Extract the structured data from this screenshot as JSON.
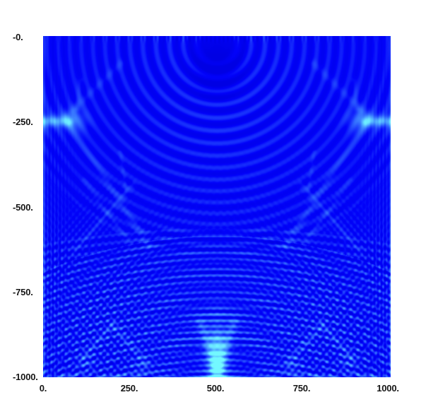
{
  "chart_data": {
    "type": "heatmap",
    "content": "2D seismic wavefield snapshot (blue colormap): circular source wavefronts at top center, boundary phases entering mid-left and mid-right edges, stacked flat reflection arcs filling the lower half, crossing diagonal multiples in the bottom corners, and a bright cyan focus plume at bottom center",
    "title": "",
    "xlabel": "",
    "ylabel": "",
    "x_range": [
      0,
      1000
    ],
    "y_range": [
      0,
      -1000
    ],
    "grid": false,
    "legend": "none",
    "x_ticks": [
      {
        "value": 0,
        "label": "0."
      },
      {
        "value": 250,
        "label": "250."
      },
      {
        "value": 500,
        "label": "500."
      },
      {
        "value": 750,
        "label": "750."
      },
      {
        "value": 1000,
        "label": "1000."
      }
    ],
    "y_ticks": [
      {
        "value": 0,
        "label": "-0."
      },
      {
        "value": 250,
        "label": "-250."
      },
      {
        "value": 500,
        "label": "-500."
      },
      {
        "value": 750,
        "label": "-750."
      },
      {
        "value": 1000,
        "label": "-1000."
      }
    ],
    "colors": {
      "page_background": "#ffffff",
      "field_base": "#0202fa",
      "ripple_light": "#2a62f2",
      "bright_cyan": "#45d2ff",
      "trough_dark": "#0000e0",
      "tick_text": "#151515"
    },
    "wavefield_features": [
      {
        "kind": "blob",
        "cx": 246,
        "cy": 36,
        "sx": 22,
        "sy": 30,
        "amp": -0.5
      },
      {
        "kind": "rings",
        "cx": 246,
        "cy": 10,
        "lam": 20,
        "lamSlope": -0.012,
        "r0": 34,
        "r1": 305,
        "rPhase": 48,
        "amp": 0.38,
        "taper": 0.3,
        "envEnd": 0.3
      },
      {
        "kind": "rings",
        "cx": 246,
        "cy": 900,
        "lam": 8,
        "r0": 418,
        "r1": 618,
        "rPhase": 418,
        "amp": 0.25,
        "envEnd": 0.85
      },
      {
        "kind": "rings",
        "cx": 246,
        "cy": 1600,
        "lam": 11,
        "r0": 1118,
        "r1": 1330,
        "rPhase": 1118,
        "amp": 0.19,
        "envEnd": 0.85
      },
      {
        "kind": "blob",
        "cx": 246,
        "cy": 420,
        "sx": 260,
        "sy": 95,
        "amp": 0.1
      },
      {
        "kind": "seg",
        "x1": 0,
        "y1": 120,
        "x2": 36,
        "y2": 120,
        "w": 5,
        "amp": 0.7,
        "sym": true
      },
      {
        "kind": "seg",
        "x1": 0,
        "y1": 120,
        "x2": 42,
        "y2": 120,
        "w": 13,
        "amp": 0.22,
        "sym": true
      },
      {
        "kind": "blob",
        "cx": 46,
        "cy": 118,
        "sx": 15,
        "sy": 12,
        "amp": 0.3,
        "sym": true
      },
      {
        "kind": "seg",
        "x1": 34,
        "y1": 112,
        "x2": 110,
        "y2": 38,
        "w": 4,
        "amp": 0.2,
        "sym": true
      },
      {
        "kind": "seg",
        "x1": 38,
        "y1": 124,
        "x2": 150,
        "y2": 298,
        "w": 4,
        "amp": 0.26,
        "sym": true
      },
      {
        "kind": "seg",
        "x1": 48,
        "y1": 102,
        "x2": 52,
        "y2": 62,
        "w": 3,
        "amp": 0.2,
        "sym": true
      },
      {
        "kind": "seg",
        "x1": 109,
        "y1": 164,
        "x2": 117,
        "y2": 219,
        "w": 2.5,
        "amp": 0.18,
        "sym": true
      },
      {
        "kind": "seg",
        "x1": 128,
        "y1": 209,
        "x2": 43,
        "y2": 304,
        "w": 3,
        "amp": 0.2,
        "sym": true
      },
      {
        "kind": "seg",
        "x1": 58,
        "y1": 204,
        "x2": 123,
        "y2": 294,
        "w": 3,
        "amp": 0.18,
        "sym": true
      },
      {
        "kind": "stripes",
        "cx": 86,
        "cy": 432,
        "angle": 40,
        "spacing": 7.5,
        "sigN": 70,
        "sigT": 115,
        "amp": 0.24,
        "sym": true
      },
      {
        "kind": "stripes",
        "cx": 86,
        "cy": 432,
        "angle": 140,
        "spacing": 7.5,
        "sigN": 70,
        "sigT": 115,
        "amp": 0.24,
        "sym": true
      },
      {
        "kind": "stripes",
        "cx": 50,
        "cy": 330,
        "angle": 40,
        "spacing": 7,
        "sigN": 40,
        "sigT": 70,
        "amp": 0.16,
        "sym": true
      },
      {
        "kind": "seg",
        "x1": 55,
        "y1": 455,
        "x2": 98,
        "y2": 408,
        "w": 3,
        "amp": 0.26,
        "sym": true
      },
      {
        "kind": "seg",
        "x1": 98,
        "y1": 408,
        "x2": 145,
        "y2": 462,
        "w": 3,
        "amp": 0.26,
        "sym": true
      },
      {
        "kind": "blob",
        "cx": 60,
        "cy": 462,
        "sx": 10,
        "sy": 8,
        "amp": 0.25,
        "sym": true
      },
      {
        "kind": "blob",
        "cx": 140,
        "cy": 468,
        "sx": 10,
        "sy": 8,
        "amp": 0.25,
        "sym": true
      },
      {
        "kind": "blob",
        "cx": 246,
        "cy": 452,
        "sx": 11,
        "sy": 34,
        "amp": 0.7
      },
      {
        "kind": "blob",
        "cx": 246,
        "cy": 478,
        "sx": 7,
        "sy": 16,
        "amp": 0.55
      },
      {
        "kind": "seg",
        "x1": 222,
        "y1": 404,
        "x2": 243,
        "y2": 466,
        "w": 5,
        "amp": 0.4
      },
      {
        "kind": "seg",
        "x1": 270,
        "y1": 404,
        "x2": 249,
        "y2": 466,
        "w": 5,
        "amp": 0.4
      },
      {
        "kind": "seg",
        "x1": 246,
        "y1": 430,
        "x2": 246,
        "y2": 482,
        "w": 7,
        "amp": 0.35
      },
      {
        "kind": "stripes",
        "cx": 246,
        "cy": 438,
        "angle": 90,
        "spacing": 9,
        "sigN": 55,
        "sigT": 48,
        "amp": 0.28
      },
      {
        "kind": "stripes",
        "cx": 6,
        "cy": 350,
        "angle": 0,
        "spacing": 5,
        "sigN": 18,
        "sigT": 170,
        "amp": 0.2,
        "sym": true
      },
      {
        "kind": "stripes",
        "cx": 246,
        "cy": 2,
        "angle": 0,
        "spacing": 6,
        "sigN": 130,
        "sigT": 4,
        "amp": 0.22
      },
      {
        "kind": "seg",
        "x1": 1,
        "y1": 0,
        "x2": 1,
        "y2": 483,
        "w": 2,
        "amp": 0.26,
        "sym": true
      },
      {
        "kind": "seg",
        "x1": 0,
        "y1": 481,
        "x2": 492,
        "y2": 481,
        "w": 2.5,
        "amp": 0.3
      }
    ]
  }
}
